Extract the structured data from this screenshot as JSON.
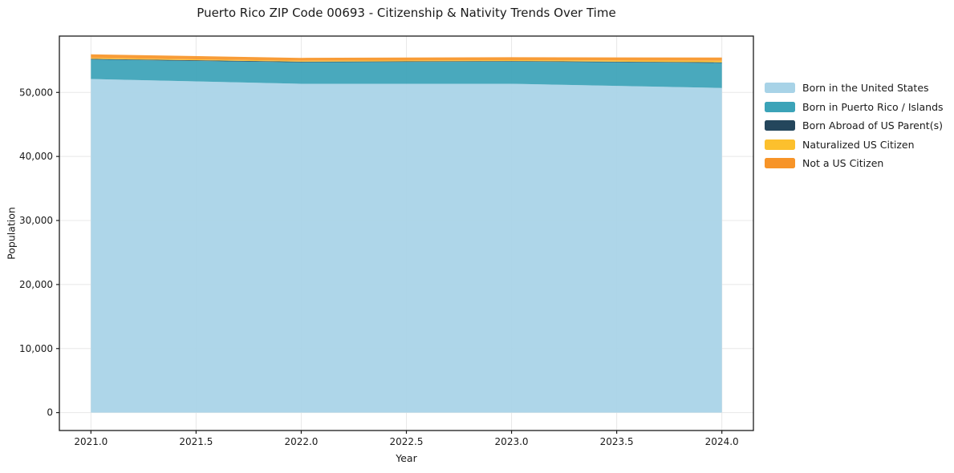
{
  "chart_data": {
    "type": "area",
    "stacked": true,
    "title": "Puerto Rico ZIP Code 00693 - Citizenship & Nativity Trends Over Time",
    "xlabel": "Year",
    "ylabel": "Population",
    "x": [
      2021,
      2022,
      2023,
      2024
    ],
    "series": [
      {
        "name": "Born in the United States",
        "color": "#a8d3e7",
        "values": [
          52100,
          51350,
          51350,
          50700
        ]
      },
      {
        "name": "Born in Puerto Rico / Islands",
        "color": "#3ba3b8",
        "values": [
          3050,
          3350,
          3450,
          3900
        ]
      },
      {
        "name": "Born Abroad of US Parent(s)",
        "color": "#24465c",
        "values": [
          100,
          100,
          100,
          100
        ]
      },
      {
        "name": "Naturalized US Citizen",
        "color": "#fcc02d",
        "values": [
          150,
          150,
          150,
          250
        ]
      },
      {
        "name": "Not a US Citizen",
        "color": "#f79428",
        "values": [
          550,
          450,
          450,
          500
        ]
      }
    ],
    "xticks": [
      2021.0,
      2021.5,
      2022.0,
      2022.5,
      2023.0,
      2023.5,
      2024.0
    ],
    "yticks": [
      0,
      10000,
      20000,
      30000,
      40000,
      50000
    ],
    "xtick_labels": [
      "2021.0",
      "2021.5",
      "2022.0",
      "2022.5",
      "2023.0",
      "2023.5",
      "2024.0"
    ],
    "ytick_labels": [
      "0",
      "10,000",
      "20,000",
      "30,000",
      "40,000",
      "50,000"
    ],
    "xlim": [
      2020.85,
      2024.15
    ],
    "ylim": [
      -2800,
      58800
    ],
    "grid": true,
    "legend_position": "right-outside",
    "grid_color": "#e8e8e8",
    "frame_color": "#1a1a1a",
    "fill_opacity": 0.93
  }
}
